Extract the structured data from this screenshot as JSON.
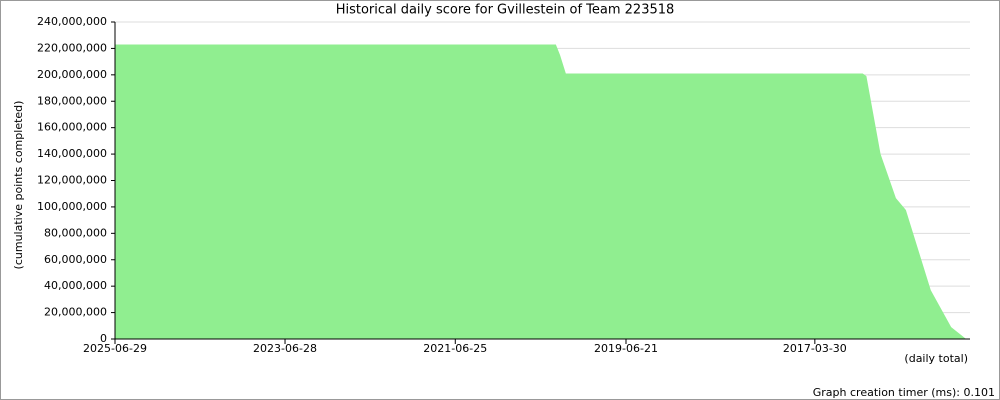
{
  "chart_data": {
    "type": "area",
    "title": "Historical daily score for Gvillestein of Team 223518",
    "y_label": "(cumulative points completed)",
    "x_label": "(daily total)",
    "footer": "Graph creation timer (ms): 0.101",
    "x": [
      "2025-06-29",
      "2020-04-18",
      "2020-03-31",
      "2020-03-06",
      "2016-09-05",
      "2016-08-20",
      "2016-06-20",
      "2016-04-15",
      "2016-03-03",
      "2015-11-17",
      "2015-08-21",
      "2015-06-21"
    ],
    "series": [
      {
        "name": "daily total",
        "color": "#90ee90",
        "values": [
          223000000,
          223000000,
          215000000,
          201000000,
          201000000,
          199000000,
          140000000,
          106700000,
          97700000,
          37000000,
          9000000,
          500000
        ]
      }
    ],
    "xlim": [
      "2025-06-29",
      "2015-06-01"
    ],
    "xticks": [
      "2025-06-29",
      "2023-06-28",
      "2021-06-25",
      "2019-06-21",
      "2017-03-30"
    ],
    "ylim": [
      0,
      240000000
    ],
    "yticks": [
      0,
      {
        "value": 20000000,
        "label": "20,000,000"
      },
      {
        "value": 40000000,
        "label": "40,000,000"
      },
      {
        "value": 60000000,
        "label": "60,000,000"
      },
      {
        "value": 80000000,
        "label": "80,000,000"
      },
      {
        "value": 100000000,
        "label": "100,000,000"
      },
      {
        "value": 120000000,
        "label": "120,000,000"
      },
      {
        "value": 140000000,
        "label": "140,000,000"
      },
      {
        "value": 160000000,
        "label": "160,000,000"
      },
      {
        "value": 180000000,
        "label": "180,000,000"
      },
      {
        "value": 200000000,
        "label": "200,000,000"
      },
      {
        "value": 220000000,
        "label": "220,000,000"
      },
      {
        "value": 240000000,
        "label": "240,000,000"
      }
    ],
    "grid": true
  }
}
